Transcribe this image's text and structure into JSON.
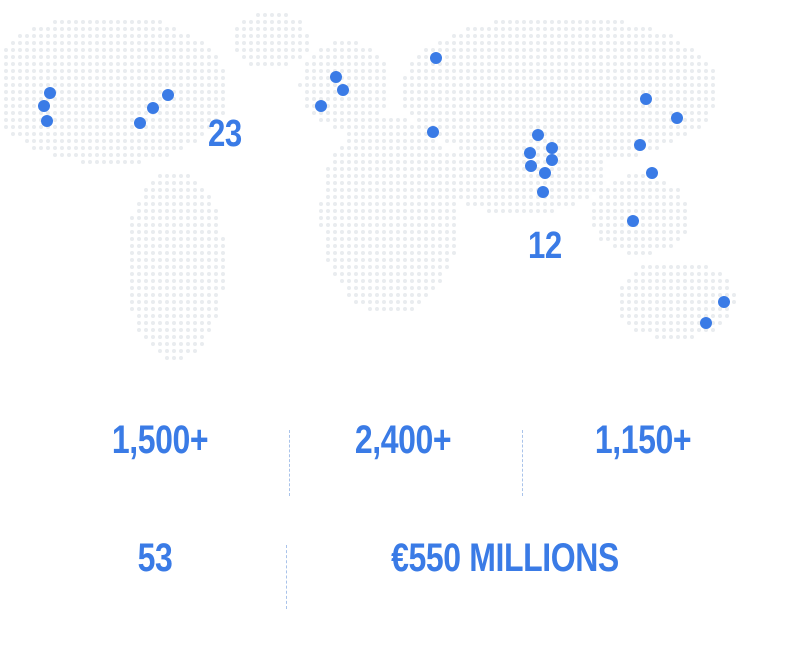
{
  "colors": {
    "accent": "#3a7be6",
    "map_dots": "#e9ecef",
    "divider": "#a9c3ea"
  },
  "map": {
    "region_numbers": [
      "23",
      "12"
    ]
  },
  "stats": {
    "row1": [
      "1,500+",
      "2,400+",
      "1,150+"
    ],
    "row2": [
      "53",
      "€550 MILLIONS"
    ]
  }
}
